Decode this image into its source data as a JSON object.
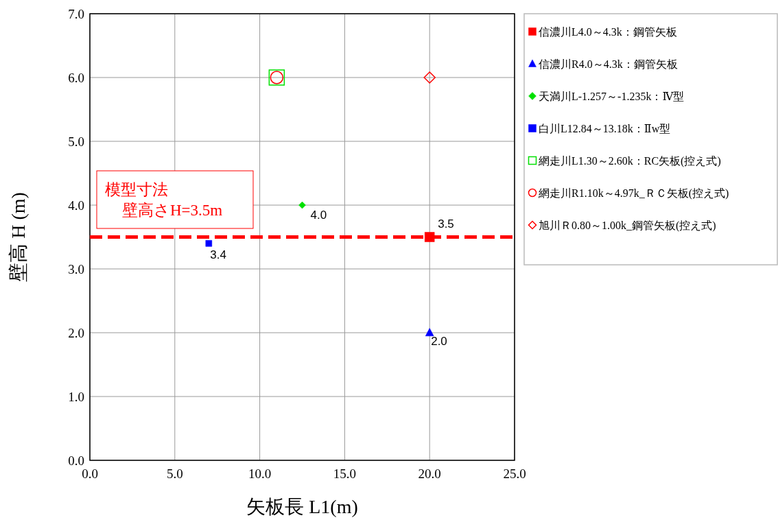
{
  "chart_data": {
    "type": "scatter",
    "xlabel": "矢板長 L1(m)",
    "ylabel": "壁高 H (m)",
    "xlim": [
      0,
      25
    ],
    "ylim": [
      0,
      7
    ],
    "xticks": [
      {
        "value": 0,
        "label": "0.0"
      },
      {
        "value": 5,
        "label": "5.0"
      },
      {
        "value": 10,
        "label": "10.0"
      },
      {
        "value": 15,
        "label": "15.0"
      },
      {
        "value": 20,
        "label": "20.0"
      },
      {
        "value": 25,
        "label": "25.0"
      }
    ],
    "yticks": [
      {
        "value": 0,
        "label": "0.0"
      },
      {
        "value": 1,
        "label": "1.0"
      },
      {
        "value": 2,
        "label": "2.0"
      },
      {
        "value": 3,
        "label": "3.0"
      },
      {
        "value": 4,
        "label": "4.0"
      },
      {
        "value": 5,
        "label": "5.0"
      },
      {
        "value": 6,
        "label": "6.0"
      },
      {
        "value": 7,
        "label": "7.0"
      }
    ],
    "grid": true,
    "legend": "right",
    "series": [
      {
        "name": "信濃川L4.0～4.3k：鋼管矢板",
        "color": "#ff0000",
        "marker": "square",
        "x": [
          20
        ],
        "values": [
          3.5
        ],
        "value_labels": [
          "3.5"
        ]
      },
      {
        "name": "信濃川R4.0～4.3k：鋼管矢板",
        "color": "#0000ff",
        "marker": "triangle",
        "x": [
          20
        ],
        "values": [
          2.0
        ],
        "value_labels": [
          "2.0"
        ]
      },
      {
        "name": "天満川L-1.257～-1.235k：Ⅳ型",
        "color": "#00e000",
        "marker": "diamond",
        "x": [
          12.5
        ],
        "values": [
          4.0
        ],
        "value_labels": [
          "4.0"
        ]
      },
      {
        "name": "白川L12.84～13.18k：Ⅱw型",
        "color": "#0000ff",
        "marker": "square",
        "x": [
          7
        ],
        "values": [
          3.4
        ],
        "value_labels": [
          "3.4"
        ]
      },
      {
        "name": "網走川L1.30～2.60k：RC矢板(控え式)",
        "color": "#00e000",
        "marker": "square",
        "x": [
          11
        ],
        "values": [
          6.0
        ]
      },
      {
        "name": "網走川R1.10k～4.97k_ＲＣ矢板(控え式)",
        "color": "#ff0000",
        "marker": "circle",
        "x": [
          11
        ],
        "values": [
          6.0
        ]
      },
      {
        "name": "旭川Ｒ0.80～1.00k_鋼管矢板(控え式)",
        "color": "#ff0000",
        "marker": "diamond",
        "x": [
          20
        ],
        "values": [
          6.0
        ]
      }
    ],
    "ref_lines": [
      {
        "axis": "y",
        "value": 3.5,
        "color": "#ff0000",
        "line_style": "dashed"
      }
    ],
    "annotations": [
      "模型寸法",
      "壁高さH=3.5m"
    ]
  }
}
